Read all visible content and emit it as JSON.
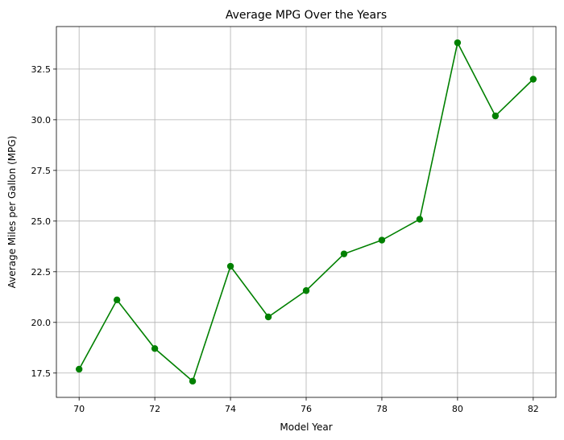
{
  "chart_data": {
    "type": "line",
    "title": "Average MPG Over the Years",
    "xlabel": "Model Year",
    "ylabel": "Average Miles per Gallon (MPG)",
    "x": [
      70,
      71,
      72,
      73,
      74,
      75,
      76,
      77,
      78,
      79,
      80,
      81,
      82
    ],
    "series": [
      {
        "values": [
          17.69,
          21.11,
          18.71,
          17.1,
          22.77,
          20.27,
          21.57,
          23.38,
          24.06,
          25.09,
          33.8,
          30.19,
          32.0
        ],
        "color": "#008000",
        "marker": "circle"
      }
    ],
    "xlim": [
      69.4,
      82.6
    ],
    "ylim": [
      16.3,
      34.6
    ],
    "xticks": [
      70,
      72,
      74,
      76,
      78,
      80,
      82
    ],
    "yticks": [
      17.5,
      20.0,
      22.5,
      25.0,
      27.5,
      30.0,
      32.5
    ],
    "ytick_labels": [
      "17.5",
      "20.0",
      "22.5",
      "25.0",
      "27.5",
      "30.0",
      "32.5"
    ],
    "grid": true
  }
}
